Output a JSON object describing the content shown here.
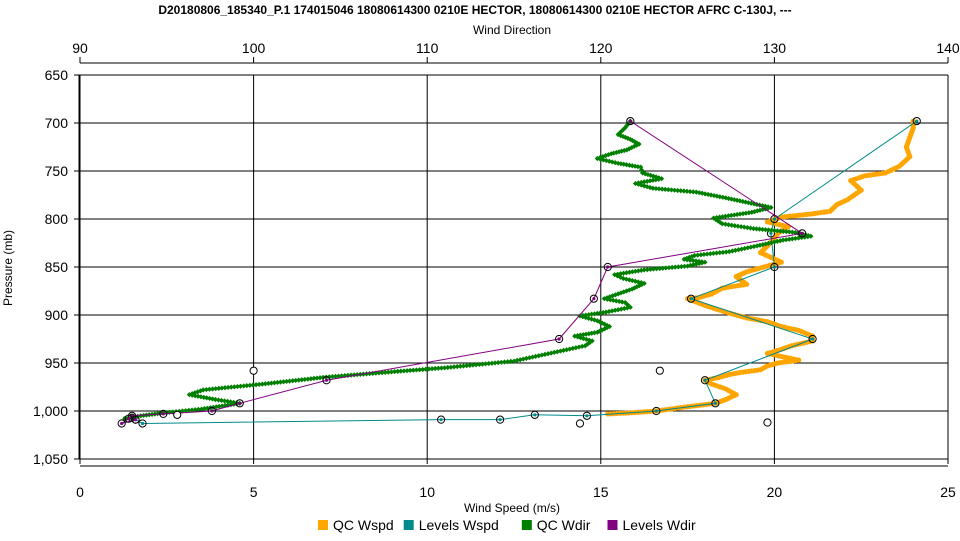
{
  "chart_data": {
    "type": "scatter",
    "title": "D20180806_185340_P.1 174015046 18080614300 0210E HECTOR, 18080614300 0210E HECTOR AFRC C-130J, ---",
    "top_axis_title": "Wind Direction",
    "xlabel": "Wind Speed (m/s)",
    "ylabel": "Pressure (mb)",
    "xlim": [
      0,
      25
    ],
    "x_ticks": [
      "0",
      "5",
      "10",
      "15",
      "20",
      "25"
    ],
    "top_xlim": [
      90,
      140
    ],
    "top_ticks": [
      "90",
      "100",
      "110",
      "120",
      "130",
      "140"
    ],
    "ylim": [
      650,
      1050
    ],
    "y_inverted": true,
    "y_ticks": [
      "650",
      "700",
      "750",
      "800",
      "850",
      "900",
      "950",
      "1,000",
      "1,050"
    ],
    "grid": true,
    "legend_position": "bottom",
    "colors": {
      "qc_wspd": "#ffa500",
      "levels_wspd": "#008b8b",
      "qc_wdir": "#008000",
      "levels_wdir": "#800080",
      "marker_ring": "#000000"
    },
    "series": [
      {
        "name": "QC Wspd",
        "axis": "bottom",
        "style": "dense-dots",
        "points": [
          [
            24,
            698
          ],
          [
            24.0,
            705
          ],
          [
            23.9,
            715
          ],
          [
            23.8,
            725
          ],
          [
            23.9,
            735
          ],
          [
            23.6,
            745
          ],
          [
            23.2,
            752
          ],
          [
            22.6,
            755
          ],
          [
            22.2,
            760
          ],
          [
            22.5,
            770
          ],
          [
            22.1,
            780
          ],
          [
            21.8,
            785
          ],
          [
            21.6,
            792
          ],
          [
            21.0,
            795
          ],
          [
            20.2,
            798
          ],
          [
            19.8,
            803
          ],
          [
            20.4,
            808
          ],
          [
            20.1,
            815
          ],
          [
            20.0,
            820
          ],
          [
            19.8,
            828
          ],
          [
            19.6,
            835
          ],
          [
            19.9,
            840
          ],
          [
            20.2,
            845
          ],
          [
            19.7,
            850
          ],
          [
            19.2,
            855
          ],
          [
            18.9,
            860
          ],
          [
            19.2,
            868
          ],
          [
            18.5,
            872
          ],
          [
            18.2,
            878
          ],
          [
            17.8,
            882
          ],
          [
            17.5,
            883
          ],
          [
            18.0,
            890
          ],
          [
            18.6,
            897
          ],
          [
            19.2,
            903
          ],
          [
            19.8,
            907
          ],
          [
            20.2,
            912
          ],
          [
            20.7,
            916
          ],
          [
            21.1,
            922
          ],
          [
            21.1,
            927
          ],
          [
            20.5,
            932
          ],
          [
            20.1,
            937
          ],
          [
            19.8,
            940
          ],
          [
            20.3,
            944
          ],
          [
            20.7,
            947
          ],
          [
            20.1,
            950
          ],
          [
            19.8,
            953
          ],
          [
            19.6,
            957
          ],
          [
            19.0,
            960
          ],
          [
            18.7,
            962
          ],
          [
            18.4,
            965
          ],
          [
            18.0,
            968
          ],
          [
            18.2,
            972
          ],
          [
            18.6,
            977
          ],
          [
            18.9,
            983
          ],
          [
            18.6,
            988
          ],
          [
            18.3,
            992
          ],
          [
            17.4,
            996
          ],
          [
            16.6,
            1000
          ],
          [
            15.8,
            1002
          ],
          [
            15.2,
            1003
          ]
        ]
      },
      {
        "name": "Levels Wspd",
        "axis": "bottom",
        "style": "line-circles",
        "points": [
          [
            24.1,
            698
          ],
          [
            20.0,
            800
          ],
          [
            19.9,
            815
          ],
          [
            20.0,
            850
          ],
          [
            17.6,
            883
          ],
          [
            21.1,
            925
          ],
          [
            18.0,
            968
          ],
          [
            18.3,
            992
          ],
          [
            16.6,
            1000
          ],
          [
            14.6,
            1005
          ],
          [
            13.1,
            1004
          ],
          [
            12.1,
            1009
          ],
          [
            10.4,
            1009
          ],
          [
            1.8,
            1013
          ],
          [
            1.5,
            1007
          ],
          [
            1.6,
            1009
          ]
        ]
      },
      {
        "name": "QC Wdir",
        "axis": "top",
        "style": "dense-dots",
        "points": [
          [
            121.7,
            698
          ],
          [
            121.4,
            705
          ],
          [
            121.0,
            712
          ],
          [
            121.7,
            717
          ],
          [
            122.2,
            722
          ],
          [
            121.5,
            728
          ],
          [
            120.6,
            732
          ],
          [
            119.8,
            737
          ],
          [
            121.0,
            742
          ],
          [
            122.3,
            746
          ],
          [
            122.4,
            752
          ],
          [
            123.5,
            758
          ],
          [
            122.0,
            763
          ],
          [
            123.0,
            768
          ],
          [
            125.5,
            772
          ],
          [
            127.2,
            778
          ],
          [
            128.5,
            783
          ],
          [
            129.8,
            788
          ],
          [
            128.7,
            793
          ],
          [
            126.5,
            799
          ],
          [
            127.0,
            805
          ],
          [
            128.8,
            810
          ],
          [
            131.2,
            814
          ],
          [
            132.1,
            818
          ],
          [
            130.5,
            822
          ],
          [
            129.0,
            828
          ],
          [
            127.4,
            834
          ],
          [
            125.4,
            838
          ],
          [
            124.8,
            842
          ],
          [
            126.0,
            845
          ],
          [
            125.0,
            849
          ],
          [
            122.5,
            853
          ],
          [
            120.8,
            858
          ],
          [
            121.3,
            862
          ],
          [
            122.5,
            867
          ],
          [
            121.8,
            873
          ],
          [
            121.0,
            878
          ],
          [
            120.2,
            883
          ],
          [
            121.4,
            887
          ],
          [
            121.7,
            892
          ],
          [
            120.3,
            897
          ],
          [
            118.8,
            901
          ],
          [
            119.8,
            906
          ],
          [
            120.5,
            912
          ],
          [
            119.8,
            918
          ],
          [
            118.5,
            922
          ],
          [
            119.5,
            927
          ],
          [
            119.1,
            932
          ],
          [
            115.0,
            948
          ],
          [
            111.0,
            955
          ],
          [
            107.4,
            960
          ],
          [
            104.0,
            965
          ],
          [
            100.5,
            972
          ],
          [
            97.1,
            978
          ],
          [
            96.3,
            983
          ],
          [
            97.8,
            988
          ],
          [
            99.2,
            992
          ],
          [
            97.0,
            998
          ],
          [
            94.8,
            1002
          ],
          [
            93.5,
            1005
          ],
          [
            92.6,
            1008
          ]
        ]
      },
      {
        "name": "Levels Wdir",
        "axis": "top",
        "style": "line-circles",
        "points": [
          [
            121.7,
            698
          ],
          [
            131.6,
            815
          ],
          [
            120.4,
            850
          ],
          [
            119.6,
            883
          ],
          [
            117.6,
            925
          ],
          [
            104.2,
            968
          ],
          [
            99.2,
            992
          ],
          [
            97.6,
            1000
          ],
          [
            94.8,
            1003
          ],
          [
            93.0,
            1005
          ],
          [
            92.8,
            1008
          ],
          [
            92.4,
            1013
          ],
          [
            93.2,
            1009
          ]
        ]
      }
    ],
    "loose_markers": [
      [
        5.0,
        958
      ],
      [
        2.8,
        1004
      ],
      [
        16.7,
        958
      ],
      [
        14.4,
        1013
      ],
      [
        19.8,
        1012
      ]
    ]
  }
}
